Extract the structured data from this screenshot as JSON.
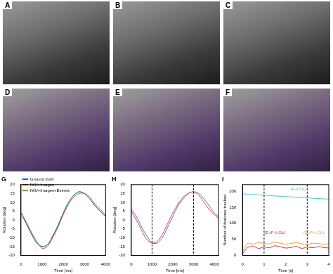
{
  "images": [
    {
      "label": "A"
    },
    {
      "label": "B"
    },
    {
      "label": "C"
    },
    {
      "label": "D"
    },
    {
      "label": "E"
    },
    {
      "label": "F"
    }
  ],
  "chart_data": [
    {
      "type": "line",
      "title": "G",
      "xlabel": "Time [ms]",
      "ylabel": "Rotation [deg]",
      "x": [
        0,
        250,
        500,
        750,
        1000,
        1250,
        1500,
        1750,
        2000,
        2250,
        2500,
        2750,
        3000,
        3250,
        3500,
        3750,
        4000
      ],
      "series": [
        {
          "name": "Ground truth",
          "color": "#0072bd",
          "values": [
            4,
            -2,
            -8,
            -13,
            -15,
            -14,
            -9,
            -3,
            4,
            10,
            14,
            16,
            15,
            12,
            8,
            5,
            2
          ]
        },
        {
          "name": "IMU+Images",
          "color": "#d95319",
          "values": [
            4,
            -1,
            -7,
            -12,
            -16,
            -15,
            -10,
            -4,
            3,
            9,
            13,
            15,
            15,
            13,
            9,
            6,
            3
          ]
        },
        {
          "name": "IMU+Images+Events",
          "color": "#77ac30",
          "values": [
            4,
            -2,
            -8,
            -13,
            -15,
            -14,
            -9,
            -3,
            4,
            10,
            14,
            16,
            15,
            12,
            8,
            5,
            2
          ]
        }
      ],
      "xlim": [
        0,
        4000
      ],
      "xticks": [
        0,
        1000,
        2000,
        3000,
        4000
      ],
      "ylim": [
        -20,
        20
      ],
      "yticks": [
        -20,
        -15,
        -10,
        -5,
        0,
        5,
        10,
        15,
        20
      ],
      "grid": false,
      "legend": "upper left"
    },
    {
      "type": "line",
      "title": "H",
      "xlabel": "Time [ms]",
      "ylabel": "Rotation [deg]",
      "x": [
        0,
        250,
        500,
        750,
        1000,
        1250,
        1500,
        1750,
        2000,
        2250,
        2500,
        2750,
        3000,
        3250,
        3500,
        3750,
        4000,
        4200
      ],
      "series": [
        {
          "color": "#e04040",
          "values": [
            5,
            0,
            -6,
            -11,
            -13,
            -12,
            -8,
            -2,
            4,
            9,
            13,
            15,
            16,
            14,
            10,
            6,
            3,
            1
          ]
        },
        {
          "color": "#4a6fd0",
          "values": [
            6,
            2,
            -4,
            -9,
            -13,
            -13,
            -10,
            -4,
            2,
            8,
            12,
            15,
            16,
            15,
            12,
            8,
            4,
            2
          ]
        }
      ],
      "vlines": [
        1000,
        3000
      ],
      "xlim": [
        0,
        4200
      ],
      "xticks": [
        0,
        1000,
        2000,
        3000,
        4000
      ],
      "ylim": [
        -20,
        20
      ],
      "yticks": [
        -20,
        -15,
        -10,
        -5,
        0,
        5,
        10,
        15,
        20
      ],
      "grid": false
    },
    {
      "type": "line",
      "title": "I",
      "xlabel": "Time [s]",
      "ylabel": "Number of features tracked",
      "x": [
        0,
        0.25,
        0.5,
        0.75,
        1,
        1.25,
        1.5,
        1.75,
        2,
        2.25,
        2.5,
        2.75,
        3,
        3.25,
        3.5,
        3.75,
        4
      ],
      "series": [
        {
          "color": "#40c8d0",
          "values": [
            192,
            190,
            189,
            188,
            187,
            186,
            185,
            184,
            183,
            182,
            181,
            180,
            179,
            178,
            177,
            176,
            175
          ]
        },
        {
          "color": "#c0305a",
          "values": [
            5,
            25,
            28,
            22,
            26,
            24,
            30,
            27,
            23,
            25,
            28,
            22,
            26,
            24,
            27,
            25,
            23
          ]
        },
        {
          "color": "#f0a020",
          "values": [
            10,
            38,
            35,
            40,
            37,
            36,
            42,
            38,
            35,
            37,
            40,
            36,
            34,
            38,
            37,
            35,
            36
          ]
        }
      ],
      "vlines": [
        1,
        3
      ],
      "annotations": [
        {
          "text": "(F+I,OL)",
          "x": 2.6,
          "y": 205,
          "color": "#40c8d0"
        },
        {
          "text": "(E+F+I,OL)",
          "x": 1.5,
          "y": 70,
          "color": "#c0305a"
        },
        {
          "text": "(E+F+I,CL)",
          "x": 3.3,
          "y": 70,
          "color": "#f0a020"
        }
      ],
      "xlim": [
        0,
        4
      ],
      "xticks": [
        0,
        1,
        2,
        3,
        4
      ],
      "ylim": [
        0,
        220
      ],
      "yticks": [
        0,
        50,
        100,
        150,
        200
      ],
      "grid": false
    }
  ]
}
